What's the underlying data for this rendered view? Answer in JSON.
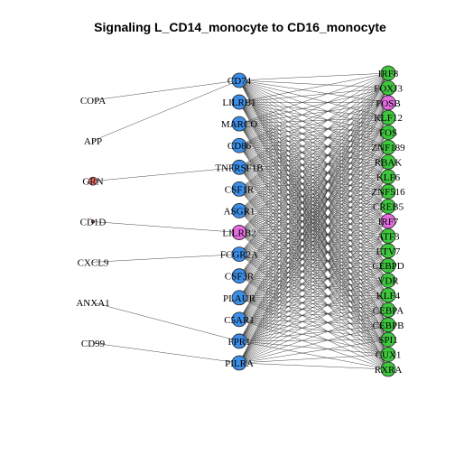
{
  "title": "Signaling L_CD14_monocyte to CD16_monocyte",
  "colors": {
    "ligand_gene": "#f8766d",
    "receptor": "#3d8ee6",
    "receptor_highlight": "#e46be0",
    "target": "#3ec63e",
    "target_highlight": "#e46be0",
    "edge": "#333333"
  },
  "ligands": [
    {
      "id": "COPA",
      "label": "COPA",
      "node": false
    },
    {
      "id": "APP",
      "label": "APP",
      "node": false
    },
    {
      "id": "GRN",
      "label": "GRN",
      "node": true
    },
    {
      "id": "CD1D",
      "label": "CD1D",
      "node": true
    },
    {
      "id": "CXCL9",
      "label": "CXCL9",
      "node": false
    },
    {
      "id": "ANXA1",
      "label": "ANXA1",
      "node": false
    },
    {
      "id": "CD99",
      "label": "CD99",
      "node": false
    }
  ],
  "receptors": [
    {
      "id": "CD74",
      "label": "CD74",
      "highlight": false
    },
    {
      "id": "LILRB1",
      "label": "LILRB1",
      "highlight": false
    },
    {
      "id": "MARCO",
      "label": "MARCO",
      "highlight": false
    },
    {
      "id": "CD86",
      "label": "CD86",
      "highlight": false
    },
    {
      "id": "TNFRSF1B",
      "label": "TNFRSF1B",
      "highlight": false
    },
    {
      "id": "CSF1R",
      "label": "CSF1R",
      "highlight": false
    },
    {
      "id": "ASGR1",
      "label": "ASGR1",
      "highlight": false
    },
    {
      "id": "LILRB2",
      "label": "LILRB2",
      "highlight": true
    },
    {
      "id": "FCGR2A",
      "label": "FCGR2A",
      "highlight": false
    },
    {
      "id": "CSF3R",
      "label": "CSF3R",
      "highlight": false
    },
    {
      "id": "PLAUR",
      "label": "PLAUR",
      "highlight": false
    },
    {
      "id": "C5AR1",
      "label": "C5AR1",
      "highlight": false
    },
    {
      "id": "FPR1",
      "label": "FPR1",
      "highlight": false
    },
    {
      "id": "PILRA",
      "label": "PILRA",
      "highlight": false
    }
  ],
  "targets": [
    {
      "id": "IRF8",
      "label": "IRF8",
      "highlight": false
    },
    {
      "id": "FOXJ3",
      "label": "FOXJ3",
      "highlight": false
    },
    {
      "id": "FOSB",
      "label": "FOSB",
      "highlight": true
    },
    {
      "id": "KLF12",
      "label": "KLF12",
      "highlight": false
    },
    {
      "id": "FOS",
      "label": "FOS",
      "highlight": false
    },
    {
      "id": "ZNF189",
      "label": "ZNF189",
      "highlight": false
    },
    {
      "id": "RBAK",
      "label": "RBAK",
      "highlight": false
    },
    {
      "id": "KLF6",
      "label": "KLF6",
      "highlight": false
    },
    {
      "id": "ZNF516",
      "label": "ZNF516",
      "highlight": false
    },
    {
      "id": "CREB5",
      "label": "CREB5",
      "highlight": false
    },
    {
      "id": "IRF7",
      "label": "IRF7",
      "highlight": true
    },
    {
      "id": "ATF3",
      "label": "ATF3",
      "highlight": false
    },
    {
      "id": "ETV7",
      "label": "ETV7",
      "highlight": false
    },
    {
      "id": "CEBPD",
      "label": "CEBPD",
      "highlight": false
    },
    {
      "id": "VDR",
      "label": "VDR",
      "highlight": false
    },
    {
      "id": "KLF4",
      "label": "KLF4",
      "highlight": false
    },
    {
      "id": "CEBPA",
      "label": "CEBPA",
      "highlight": false
    },
    {
      "id": "CEBPB",
      "label": "CEBPB",
      "highlight": false
    },
    {
      "id": "SPI1",
      "label": "SPI1",
      "highlight": false
    },
    {
      "id": "CUX1",
      "label": "CUX1",
      "highlight": false
    },
    {
      "id": "RXRA",
      "label": "RXRA",
      "highlight": false
    }
  ],
  "ligand_receptor_edges": [
    [
      "COPA",
      "CD74"
    ],
    [
      "APP",
      "CD74"
    ],
    [
      "GRN",
      "TNFRSF1B"
    ],
    [
      "CD1D",
      "LILRB2"
    ],
    [
      "CXCL9",
      "FCGR2A"
    ],
    [
      "ANXA1",
      "FPR1"
    ],
    [
      "CD99",
      "PILRA"
    ]
  ],
  "receptor_target_edges": "all"
}
